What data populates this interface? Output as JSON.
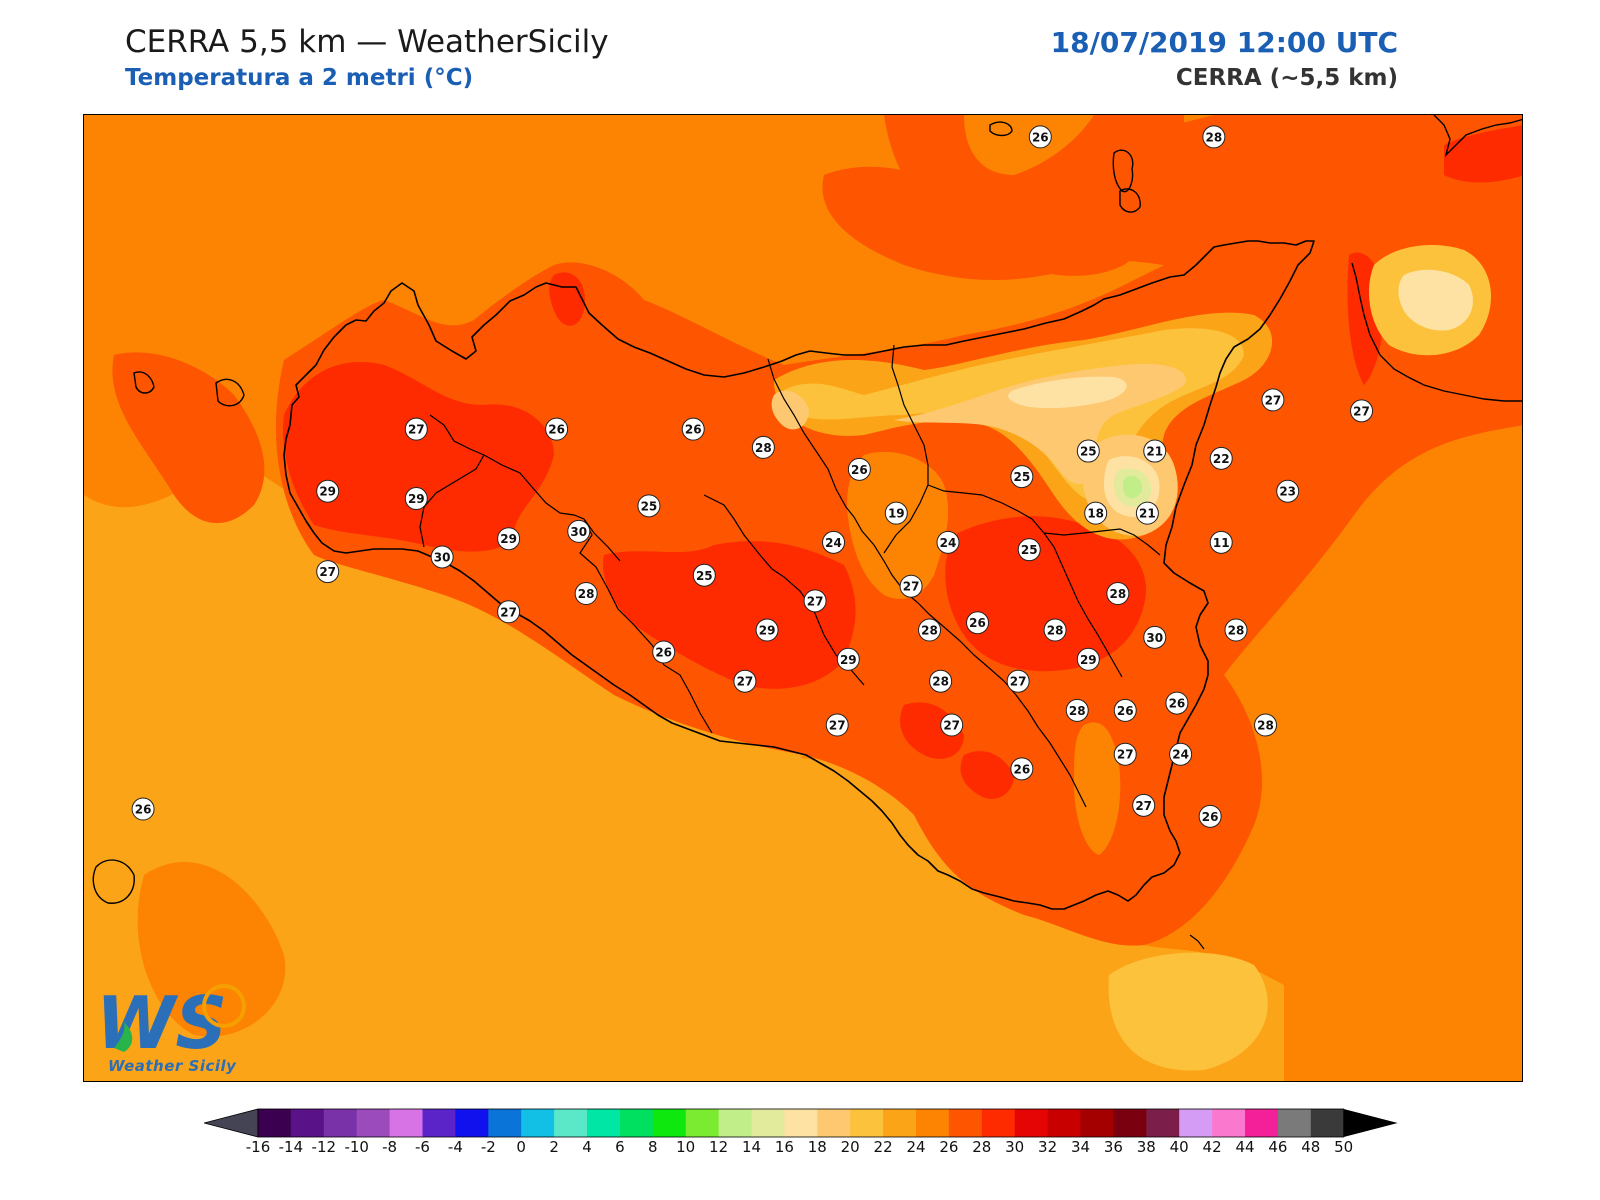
{
  "header": {
    "title": "CERRA 5,5 km — WeatherSicily",
    "subtitle": "Temperatura a 2 metri (°C)",
    "datetime": "18/07/2019 12:00 UTC",
    "model": "CERRA (~5,5 km)"
  },
  "logo": {
    "text": "Weather Sicily",
    "mark": "WS"
  },
  "colorbar": {
    "ticks": [
      "-16",
      "-14",
      "-12",
      "-10",
      "-8",
      "-6",
      "-4",
      "-2",
      "0",
      "2",
      "4",
      "6",
      "8",
      "10",
      "12",
      "14",
      "16",
      "18",
      "20",
      "22",
      "24",
      "26",
      "28",
      "30",
      "32",
      "34",
      "36",
      "38",
      "40",
      "42",
      "44",
      "46",
      "48",
      "50"
    ],
    "colors": [
      "#3b0050",
      "#5a1289",
      "#7a32a8",
      "#9c4bbd",
      "#d873e6",
      "#5b24c8",
      "#1111ee",
      "#0a74d8",
      "#12c0e6",
      "#5ae8c8",
      "#00e6a4",
      "#00e060",
      "#0fe80f",
      "#7aeb30",
      "#c2ee8a",
      "#e2ea9c",
      "#fde2a4",
      "#fdc870",
      "#fdc23c",
      "#fca418",
      "#fd8402",
      "#fd5500",
      "#fe2a00",
      "#e60505",
      "#c90000",
      "#a40000",
      "#7a0010",
      "#7b1e4a",
      "#d59cf5",
      "#fb78cf",
      "#f3209a",
      "#7a7a7a",
      "#3a3a3a"
    ],
    "under_color": "#444455",
    "over_color": "#000000"
  },
  "station_labels": [
    {
      "value": "26",
      "lon": 14.49,
      "lat": 38.99
    },
    {
      "value": "28",
      "lon": 14.96,
      "lat": 38.99
    },
    {
      "value": "27",
      "lon": 12.8,
      "lat": 38.19
    },
    {
      "value": "26",
      "lon": 13.18,
      "lat": 38.19
    },
    {
      "value": "26",
      "lon": 13.55,
      "lat": 38.19
    },
    {
      "value": "28",
      "lon": 13.74,
      "lat": 38.14
    },
    {
      "value": "29",
      "lon": 12.56,
      "lat": 38.02
    },
    {
      "value": "29",
      "lon": 12.8,
      "lat": 38.0
    },
    {
      "value": "30",
      "lon": 13.24,
      "lat": 37.91
    },
    {
      "value": "29",
      "lon": 13.05,
      "lat": 37.89
    },
    {
      "value": "30",
      "lon": 12.87,
      "lat": 37.84
    },
    {
      "value": "27",
      "lon": 12.56,
      "lat": 37.8
    },
    {
      "value": "25",
      "lon": 13.43,
      "lat": 37.98
    },
    {
      "value": "26",
      "lon": 14.0,
      "lat": 38.08
    },
    {
      "value": "25",
      "lon": 13.58,
      "lat": 37.79
    },
    {
      "value": "28",
      "lon": 13.26,
      "lat": 37.74
    },
    {
      "value": "27",
      "lon": 13.05,
      "lat": 37.69
    },
    {
      "value": "24",
      "lon": 13.93,
      "lat": 37.88
    },
    {
      "value": "19",
      "lon": 14.1,
      "lat": 37.96
    },
    {
      "value": "24",
      "lon": 14.24,
      "lat": 37.88
    },
    {
      "value": "27",
      "lon": 14.14,
      "lat": 37.76
    },
    {
      "value": "27",
      "lon": 13.88,
      "lat": 37.72
    },
    {
      "value": "25",
      "lon": 14.44,
      "lat": 38.06
    },
    {
      "value": "25",
      "lon": 14.62,
      "lat": 38.13
    },
    {
      "value": "21",
      "lon": 14.8,
      "lat": 38.13
    },
    {
      "value": "22",
      "lon": 14.98,
      "lat": 38.11
    },
    {
      "value": "27",
      "lon": 15.12,
      "lat": 38.27
    },
    {
      "value": "27",
      "lon": 15.36,
      "lat": 38.24
    },
    {
      "value": "23",
      "lon": 15.16,
      "lat": 38.02
    },
    {
      "value": "18",
      "lon": 14.64,
      "lat": 37.96
    },
    {
      "value": "21",
      "lon": 14.78,
      "lat": 37.96
    },
    {
      "value": "11",
      "lon": 14.98,
      "lat": 37.88
    },
    {
      "value": "25",
      "lon": 14.46,
      "lat": 37.86
    },
    {
      "value": "28",
      "lon": 14.7,
      "lat": 37.74
    },
    {
      "value": "26",
      "lon": 14.32,
      "lat": 37.66
    },
    {
      "value": "28",
      "lon": 14.53,
      "lat": 37.64
    },
    {
      "value": "28",
      "lon": 15.02,
      "lat": 37.64
    },
    {
      "value": "30",
      "lon": 14.8,
      "lat": 37.62
    },
    {
      "value": "29",
      "lon": 13.75,
      "lat": 37.64
    },
    {
      "value": "28",
      "lon": 14.19,
      "lat": 37.64
    },
    {
      "value": "29",
      "lon": 13.97,
      "lat": 37.56
    },
    {
      "value": "29",
      "lon": 14.62,
      "lat": 37.56
    },
    {
      "value": "26",
      "lon": 13.47,
      "lat": 37.58
    },
    {
      "value": "27",
      "lon": 13.69,
      "lat": 37.5
    },
    {
      "value": "28",
      "lon": 14.22,
      "lat": 37.5
    },
    {
      "value": "27",
      "lon": 14.43,
      "lat": 37.5
    },
    {
      "value": "27",
      "lon": 13.94,
      "lat": 37.38
    },
    {
      "value": "27",
      "lon": 14.25,
      "lat": 37.38
    },
    {
      "value": "28",
      "lon": 14.59,
      "lat": 37.42
    },
    {
      "value": "26",
      "lon": 14.72,
      "lat": 37.42
    },
    {
      "value": "26",
      "lon": 14.86,
      "lat": 37.44
    },
    {
      "value": "28",
      "lon": 15.1,
      "lat": 37.38
    },
    {
      "value": "26",
      "lon": 14.44,
      "lat": 37.26
    },
    {
      "value": "27",
      "lon": 14.72,
      "lat": 37.3
    },
    {
      "value": "24",
      "lon": 14.87,
      "lat": 37.3
    },
    {
      "value": "27",
      "lon": 14.77,
      "lat": 37.16
    },
    {
      "value": "26",
      "lon": 14.95,
      "lat": 37.13
    },
    {
      "value": "26",
      "lon": 12.06,
      "lat": 37.15
    }
  ]
}
